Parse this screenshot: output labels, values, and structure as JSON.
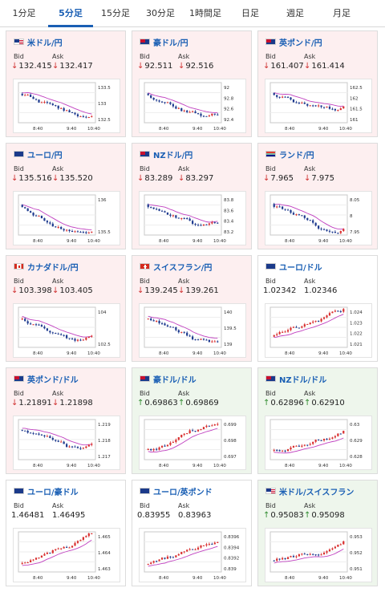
{
  "tabs": [
    "1分足",
    "5分足",
    "15分足",
    "30分足",
    "1時間足",
    "日足",
    "週足",
    "月足"
  ],
  "active_tab": 1,
  "bid_label": "Bid",
  "ask_label": "Ask",
  "x_ticks": [
    "8:40",
    "9:40",
    "10:40"
  ],
  "colors": {
    "up": "#2e8b2e",
    "down": "#d03030",
    "link": "#1a5fb4",
    "ma": "#c040c0",
    "candle_up": "#d93030",
    "candle_down": "#1f3b8f"
  },
  "cards": [
    {
      "pair": "米ドル/円",
      "flag": "us",
      "trend": "down",
      "bid": "132.415",
      "ask": "132.417",
      "y_ticks": [
        "133.5",
        "133",
        "132.5"
      ]
    },
    {
      "pair": "豪ドル/円",
      "flag": "au",
      "trend": "down",
      "bid": "92.511",
      "ask": "92.516",
      "y_ticks": [
        "92",
        "92.8",
        "92.6",
        "92.4"
      ]
    },
    {
      "pair": "英ポンド/円",
      "flag": "gb",
      "trend": "down",
      "bid": "161.407",
      "ask": "161.414",
      "y_ticks": [
        "162.5",
        "162",
        "161.5",
        "161"
      ]
    },
    {
      "pair": "ユーロ/円",
      "flag": "eu",
      "trend": "down",
      "bid": "135.516",
      "ask": "135.520",
      "y_ticks": [
        "136",
        "135.5"
      ]
    },
    {
      "pair": "NZドル/円",
      "flag": "nz",
      "trend": "down",
      "bid": "83.289",
      "ask": "83.297",
      "y_ticks": [
        "83.8",
        "83.6",
        "83.4",
        "83.2"
      ]
    },
    {
      "pair": "ランド/円",
      "flag": "za",
      "trend": "down",
      "bid": "7.965",
      "ask": "7.975",
      "y_ticks": [
        "8.05",
        "8",
        "7.95"
      ]
    },
    {
      "pair": "カナダドル/円",
      "flag": "ca",
      "trend": "down",
      "bid": "103.398",
      "ask": "103.405",
      "y_ticks": [
        "104",
        "102.5"
      ]
    },
    {
      "pair": "スイスフラン/円",
      "flag": "ch",
      "trend": "down",
      "bid": "139.245",
      "ask": "139.261",
      "y_ticks": [
        "140",
        "139.5",
        "139"
      ]
    },
    {
      "pair": "ユーロ/ドル",
      "flag": "eu",
      "trend": "flat",
      "bid": "1.02342",
      "ask": "1.02346",
      "y_ticks": [
        "1.024",
        "1.023",
        "1.022",
        "1.021"
      ]
    },
    {
      "pair": "英ポンド/ドル",
      "flag": "gb",
      "trend": "down",
      "bid": "1.21891",
      "ask": "1.21898",
      "y_ticks": [
        "1.219",
        "1.218",
        "1.217"
      ]
    },
    {
      "pair": "豪ドル/ドル",
      "flag": "au",
      "trend": "up",
      "bid": "0.69863",
      "ask": "0.69869",
      "y_ticks": [
        "0.699",
        "0.698",
        "0.697"
      ]
    },
    {
      "pair": "NZドル/ドル",
      "flag": "nz",
      "trend": "up",
      "bid": "0.62896",
      "ask": "0.62910",
      "y_ticks": [
        "0.63",
        "0.629",
        "0.628"
      ]
    },
    {
      "pair": "ユーロ/豪ドル",
      "flag": "eu",
      "trend": "flat",
      "bid": "1.46481",
      "ask": "1.46495",
      "y_ticks": [
        "1.465",
        "1.464",
        "1.463"
      ]
    },
    {
      "pair": "ユーロ/英ポンド",
      "flag": "eu",
      "trend": "flat",
      "bid": "0.83955",
      "ask": "0.83963",
      "y_ticks": [
        "0.8396",
        "0.8394",
        "0.8392",
        "0.839"
      ]
    },
    {
      "pair": "米ドル/スイスフラン",
      "flag": "us",
      "trend": "up",
      "bid": "0.95083",
      "ask": "0.95098",
      "y_ticks": [
        "0.953",
        "0.952",
        "0.951"
      ]
    }
  ]
}
